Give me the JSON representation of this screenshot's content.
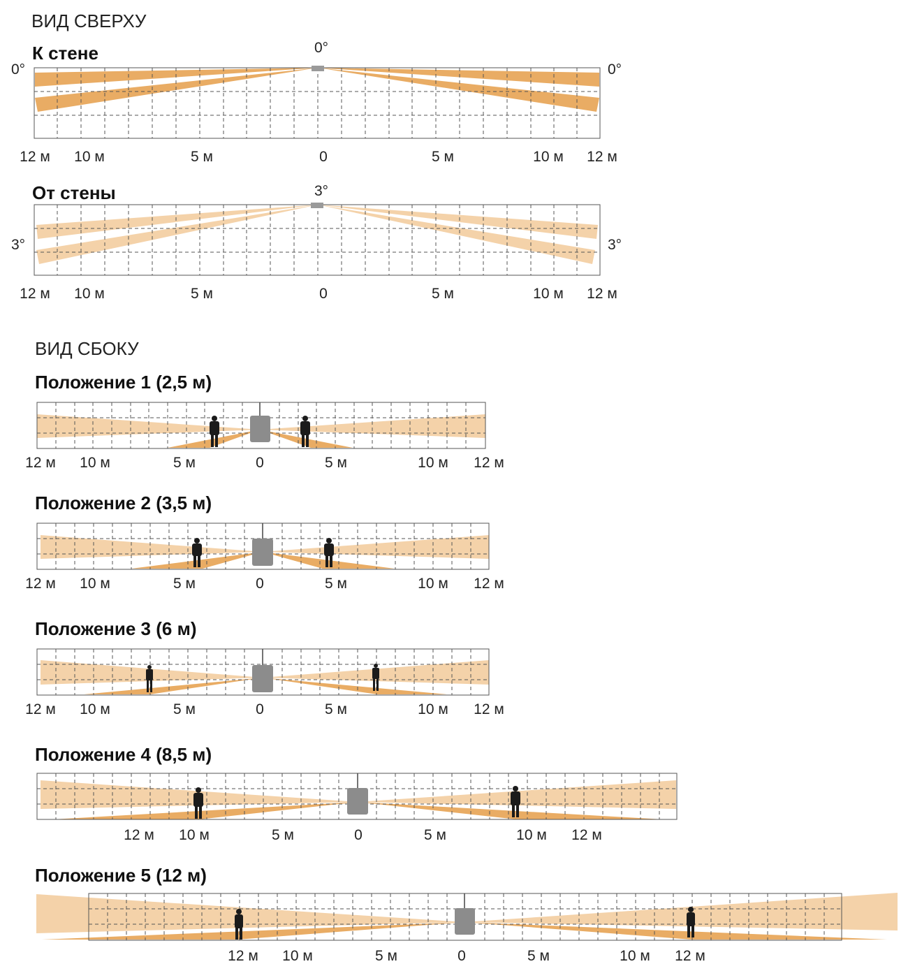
{
  "top_view": {
    "title": "ВИД СВЕРХУ",
    "diagrams": [
      {
        "name": "to-wall",
        "title": "К стене",
        "angle_center": "0°",
        "angle_left": "0°",
        "angle_right": "0°",
        "ticks": [
          "12 м",
          "10 м",
          "5 м",
          "0",
          "5 м",
          "10 м",
          "12 м"
        ]
      },
      {
        "name": "from-wall",
        "title": "От стены",
        "angle_center": "3°",
        "angle_left": "3°",
        "angle_right": "3°",
        "ticks": [
          "12 м",
          "10 м",
          "5 м",
          "0",
          "5 м",
          "10 м",
          "12 м"
        ]
      }
    ]
  },
  "side_view": {
    "title": "ВИД СБОКУ",
    "positions": [
      {
        "title": "Положение 1 (2,5 м)",
        "ticks": [
          "12 м",
          "10 м",
          "5 м",
          "0",
          "5 м",
          "10 м",
          "12 м"
        ]
      },
      {
        "title": "Положение 2 (3,5 м)",
        "ticks": [
          "12 м",
          "10 м",
          "5 м",
          "0",
          "5 м",
          "10 м",
          "12 м"
        ]
      },
      {
        "title": "Положение 3 (6 м)",
        "ticks": [
          "12 м",
          "10 м",
          "5 м",
          "0",
          "5 м",
          "10 м",
          "12 м"
        ]
      },
      {
        "title": "Положение 4 (8,5 м)",
        "ticks": [
          "12 м",
          "10 м",
          "5 м",
          "0",
          "5 м",
          "10 м",
          "12 м"
        ]
      },
      {
        "title": "Положение 5 (12 м)",
        "ticks": [
          "12 м",
          "10 м",
          "5 м",
          "0",
          "5 м",
          "10 м",
          "12 м"
        ]
      }
    ]
  },
  "colors": {
    "beam_strong": "#e8a85c",
    "beam_light": "#f3cda0",
    "sensor": "#8c8c8c",
    "person": "#1b1b1b"
  }
}
